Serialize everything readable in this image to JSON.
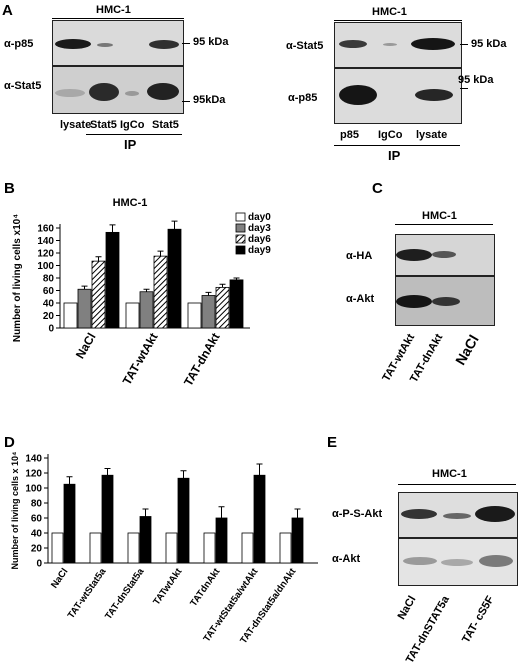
{
  "panels": {
    "a": "A",
    "b": "B",
    "c": "C",
    "d": "D",
    "e": "E"
  },
  "A_left": {
    "cell_line": "HMC-1",
    "rows": [
      "α-p85",
      "α-Stat5"
    ],
    "sizes": [
      "95 kDa",
      "95kDa"
    ],
    "lanes": [
      "lysate",
      "Stat5",
      "IgCo",
      "Stat5"
    ],
    "ip": "IP"
  },
  "A_right": {
    "cell_line": "HMC-1",
    "rows": [
      "α-Stat5",
      "α-p85"
    ],
    "sizes": [
      "95 kDa",
      "95 kDa"
    ],
    "lanes": [
      "p85",
      "IgCo",
      "lysate"
    ],
    "ip": "IP"
  },
  "B": {
    "cell_line": "HMC-1"
  },
  "C": {
    "cell_line": "HMC-1",
    "rows": [
      "α-HA",
      "α-Akt"
    ],
    "lanes": [
      "TAT-wtAkt",
      "TAT-dnAkt",
      "NaCl"
    ]
  },
  "E": {
    "cell_line": "HMC-1",
    "rows": [
      "α-P-S-Akt",
      "α-Akt"
    ],
    "lanes": [
      "NaCl",
      "TAT-dnSTAT5a",
      "TAT- cS5F"
    ]
  },
  "chart_data": [
    {
      "type": "bar",
      "title": "HMC-1",
      "ylabel": "Number of living cells x10⁴",
      "ylim": [
        0,
        160
      ],
      "yticks": [
        0,
        20,
        40,
        60,
        80,
        100,
        120,
        140,
        160
      ],
      "categories": [
        "NaCl",
        "TAT-wtAkt",
        "TAT-dnAkt"
      ],
      "series": [
        {
          "name": "day0",
          "values": [
            40,
            40,
            40
          ],
          "errors": [
            0,
            0,
            0
          ],
          "fill": "#ffffff"
        },
        {
          "name": "day3",
          "values": [
            62,
            58,
            52
          ],
          "errors": [
            5,
            4,
            5
          ],
          "fill": "#808080"
        },
        {
          "name": "day6",
          "values": [
            107,
            115,
            65
          ],
          "errors": [
            7,
            8,
            5
          ],
          "fill": "hatch"
        },
        {
          "name": "day9",
          "values": [
            153,
            158,
            77
          ],
          "errors": [
            12,
            13,
            3
          ],
          "fill": "#000000"
        }
      ],
      "legend": "top-right"
    },
    {
      "type": "bar",
      "title": "",
      "ylabel": "Number of living cells x 10⁴",
      "ylim": [
        0,
        140
      ],
      "yticks": [
        0,
        20,
        40,
        60,
        80,
        100,
        120,
        140
      ],
      "categories": [
        "NaCl",
        "TAT-wtStat5a",
        "TAT-dnStat5a",
        "TATwtAkt",
        "TATdnAkt",
        "TAT-wtStat5a/wtAkt",
        "TAT-dnStat5a/dnAkt"
      ],
      "series": [
        {
          "name": "",
          "values": [
            40,
            40,
            40,
            40,
            40,
            40,
            40
          ],
          "errors": [
            0,
            0,
            0,
            0,
            0,
            0,
            0
          ],
          "fill": "#ffffff"
        },
        {
          "name": "",
          "values": [
            105,
            117,
            62,
            113,
            60,
            117,
            60
          ],
          "errors": [
            10,
            9,
            10,
            10,
            15,
            15,
            12
          ],
          "fill": "#000000"
        }
      ]
    }
  ]
}
